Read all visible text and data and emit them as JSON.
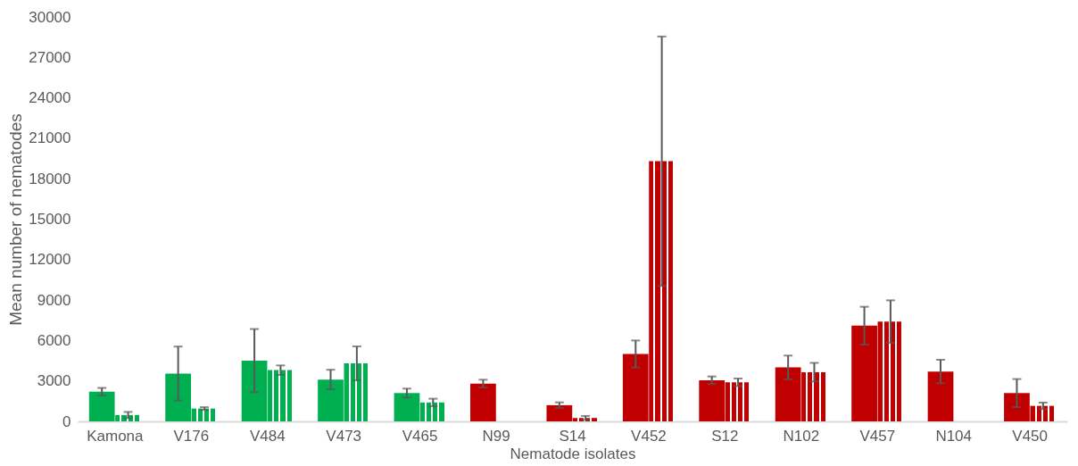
{
  "chart_data": {
    "type": "bar",
    "xlabel": "Nematode isolates",
    "ylabel": "Mean number of nematodes",
    "categories": [
      "Kamona",
      "V176",
      "V484",
      "V473",
      "V465",
      "N99",
      "S14",
      "V452",
      "S12",
      "N102",
      "V457",
      "N104",
      "V450"
    ],
    "series": [
      {
        "colors": [
          "#00b050",
          "#00b050",
          "#00b050",
          "#00b050",
          "#00b050",
          "#c00000",
          "#c00000",
          "#c00000",
          "#c00000",
          "#c00000",
          "#c00000",
          "#c00000",
          "#c00000"
        ],
        "values": [
          2200,
          3550,
          4500,
          3100,
          2100,
          2800,
          1200,
          5000,
          3050,
          4000,
          7100,
          3700,
          2100
        ],
        "errors": [
          280,
          2000,
          2350,
          730,
          330,
          290,
          210,
          1000,
          280,
          880,
          1400,
          870,
          1040
        ]
      },
      {
        "colors": [
          "#00b050",
          "#00b050",
          "#00b050",
          "#00b050",
          "#00b050",
          "#c00000",
          "#c00000",
          "#c00000",
          "#c00000",
          "#c00000",
          "#c00000",
          "#c00000",
          "#c00000"
        ],
        "values": [
          470,
          950,
          3800,
          4300,
          1400,
          null,
          250,
          19300,
          2900,
          3650,
          7400,
          null,
          1150
        ],
        "errors": [
          230,
          100,
          350,
          1260,
          280,
          null,
          150,
          9250,
          280,
          690,
          1580,
          null,
          240
        ]
      }
    ],
    "ylim": [
      0,
      30000
    ],
    "yticks": [
      0,
      3000,
      6000,
      9000,
      12000,
      15000,
      18000,
      21000,
      24000,
      27000,
      30000
    ],
    "grid": false
  }
}
